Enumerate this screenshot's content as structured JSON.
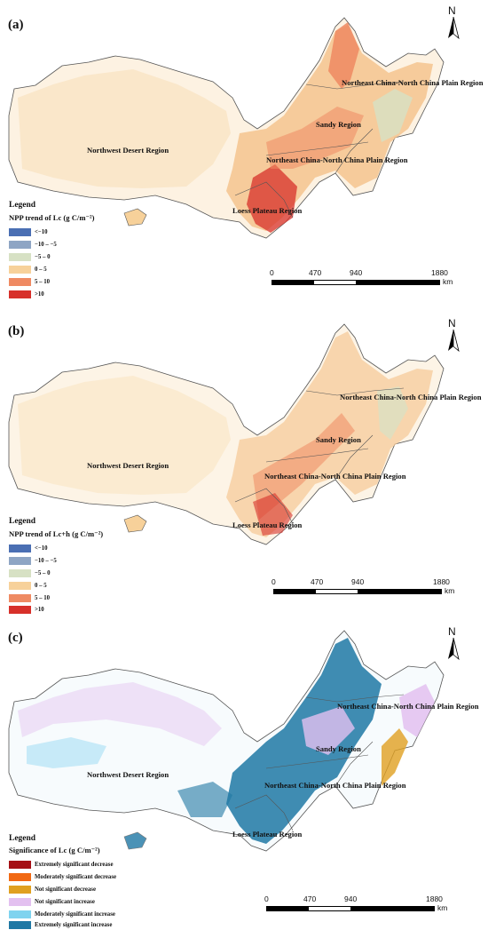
{
  "panels": [
    {
      "label": "(a)",
      "regions": {
        "northwest": "Northwest Desert Region",
        "loess": "Loess Plateau Region",
        "sandy": "Sandy Region",
        "ne_central": "Northeast China-North China Plain Region",
        "ne_upper": "Northeast China-North China Plain Region"
      },
      "legend": {
        "title": "Legend",
        "subtitle": "NPP trend of  Lc (g C/m⁻²)",
        "items": [
          {
            "label": "<−10",
            "color": "#4a6fb3"
          },
          {
            "label": "−10 – −5",
            "color": "#8ea5c4"
          },
          {
            "label": "−5 – 0",
            "color": "#d7e1c4"
          },
          {
            "label": "0 – 5",
            "color": "#f7d19a"
          },
          {
            "label": "5 – 10",
            "color": "#ef8a62"
          },
          {
            "label": ">10",
            "color": "#d7302a"
          }
        ]
      },
      "scale": {
        "ticks": [
          "0",
          "470",
          "940",
          "1880"
        ],
        "unit": "km"
      },
      "north": "N"
    },
    {
      "label": "(b)",
      "regions": {
        "northwest": "Northwest Desert Region",
        "loess": "Loess Plateau Region",
        "sandy": "Sandy Region",
        "ne_central": "Northeast China-North China Plain Region",
        "ne_upper": "Northeast China-North China Plain Region"
      },
      "legend": {
        "title": "Legend",
        "subtitle": "NPP trend of  Lc+h (g C/m⁻²)",
        "items": [
          {
            "label": "<−10",
            "color": "#4a6fb3"
          },
          {
            "label": "−10 – −5",
            "color": "#8ea5c4"
          },
          {
            "label": "−5 – 0",
            "color": "#d7e1c4"
          },
          {
            "label": "0 – 5",
            "color": "#f7d19a"
          },
          {
            "label": "5 – 10",
            "color": "#ef8a62"
          },
          {
            "label": ">10",
            "color": "#d7302a"
          }
        ]
      },
      "scale": {
        "ticks": [
          "0",
          "470",
          "940",
          "1880"
        ],
        "unit": "km"
      },
      "north": "N"
    },
    {
      "label": "(c)",
      "regions": {
        "northwest": "Northwest Desert Region",
        "loess": "Loess Plateau Region",
        "sandy": "Sandy Region",
        "ne_central": "Northeast China-North China Plain Region",
        "ne_upper": "Northeast China-North China Plain Region"
      },
      "legend": {
        "title": "Legend",
        "subtitle": "Significance of Lc (g C/m⁻²)",
        "items": [
          {
            "label": "Extremely significant decrease",
            "color": "#a50f15"
          },
          {
            "label": "Moderately significant decrease",
            "color": "#f16913"
          },
          {
            "label": "Not significant decrease",
            "color": "#e0a020"
          },
          {
            "label": "Not significant increase",
            "color": "#e3c0f0"
          },
          {
            "label": "Moderately significant increase",
            "color": "#7fd3ef"
          },
          {
            "label": "Extremely significant increase",
            "color": "#1f78a4"
          }
        ]
      },
      "scale": {
        "ticks": [
          "0",
          "470",
          "940",
          "1880"
        ],
        "unit": "km"
      },
      "north": "N"
    }
  ]
}
